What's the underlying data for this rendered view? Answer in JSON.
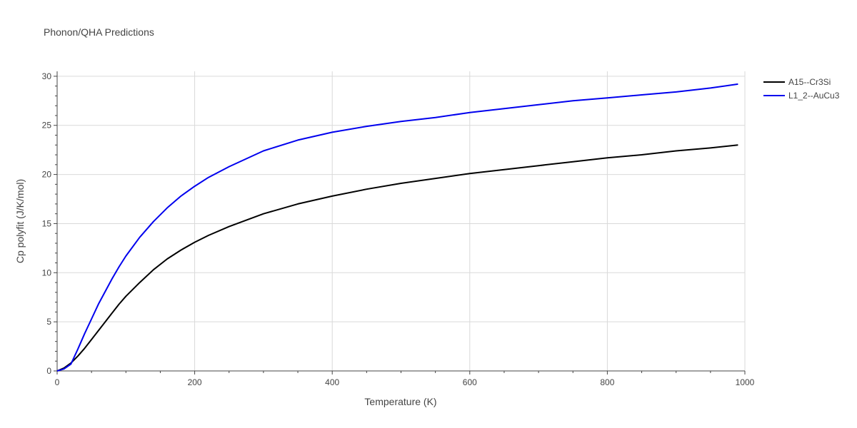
{
  "chart_data": {
    "type": "line",
    "title": "Phonon/QHA Predictions",
    "xlabel": "Temperature (K)",
    "ylabel": "Cp polyfit (J/K/mol)",
    "xlim": [
      0,
      1000
    ],
    "ylim": [
      0,
      30.5
    ],
    "xticks": [
      0,
      200,
      400,
      600,
      800,
      1000
    ],
    "yticks": [
      0,
      5,
      10,
      15,
      20,
      25,
      30
    ],
    "grid": true,
    "legend_position": "top-right",
    "series": [
      {
        "name": "A15--Cr3Si",
        "color": "#000000",
        "x": [
          0,
          10,
          20,
          30,
          40,
          50,
          60,
          70,
          80,
          90,
          100,
          120,
          140,
          160,
          180,
          200,
          220,
          250,
          300,
          350,
          400,
          450,
          500,
          550,
          600,
          650,
          700,
          750,
          800,
          850,
          900,
          950,
          990
        ],
        "y": [
          0,
          0.3,
          0.8,
          1.5,
          2.3,
          3.2,
          4.1,
          5.0,
          5.9,
          6.8,
          7.6,
          9.0,
          10.3,
          11.4,
          12.3,
          13.1,
          13.8,
          14.7,
          16.0,
          17.0,
          17.8,
          18.5,
          19.1,
          19.6,
          20.1,
          20.5,
          20.9,
          21.3,
          21.7,
          22.0,
          22.4,
          22.7,
          23.0
        ]
      },
      {
        "name": "L1_2--AuCu3",
        "color": "#0000ee",
        "x": [
          0,
          10,
          20,
          30,
          40,
          50,
          60,
          70,
          80,
          90,
          100,
          120,
          140,
          160,
          180,
          200,
          220,
          250,
          300,
          350,
          400,
          450,
          500,
          550,
          600,
          650,
          700,
          750,
          800,
          850,
          900,
          950,
          990
        ],
        "y": [
          0,
          0.2,
          0.7,
          2.2,
          3.8,
          5.3,
          6.8,
          8.1,
          9.4,
          10.6,
          11.7,
          13.6,
          15.2,
          16.6,
          17.8,
          18.8,
          19.7,
          20.8,
          22.4,
          23.5,
          24.3,
          24.9,
          25.4,
          25.8,
          26.3,
          26.7,
          27.1,
          27.5,
          27.8,
          28.1,
          28.4,
          28.8,
          29.2
        ]
      }
    ]
  }
}
